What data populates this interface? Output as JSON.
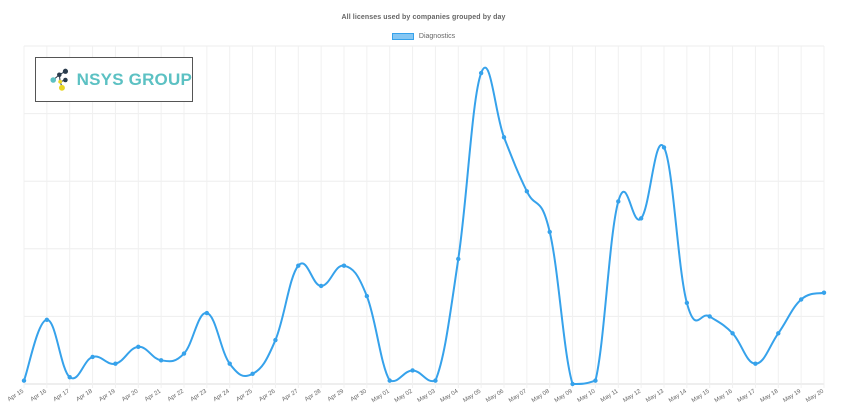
{
  "chart_data": {
    "type": "line",
    "title": "All licenses used by companies grouped by day",
    "categories": [
      "Apr 15",
      "Apr 16",
      "Apr 17",
      "Apr 18",
      "Apr 19",
      "Apr 20",
      "Apr 21",
      "Apr 22",
      "Apr 23",
      "Apr 24",
      "Apr 25",
      "Apr 26",
      "Apr 27",
      "Apr 28",
      "Apr 29",
      "Apr 30",
      "May 01",
      "May 02",
      "May 03",
      "May 04",
      "May 05",
      "May 06",
      "May 07",
      "May 08",
      "May 09",
      "May 10",
      "May 11",
      "May 12",
      "May 13",
      "May 14",
      "May 15",
      "May 16",
      "May 17",
      "May 18",
      "May 19",
      "May 20"
    ],
    "series": [
      {
        "name": "Diagnostics",
        "color": "#36a2eb",
        "values": [
          0.5,
          9.5,
          1,
          4,
          3,
          5.5,
          3.5,
          4.5,
          10.5,
          3,
          1.5,
          6.5,
          17.5,
          14.5,
          17.5,
          13,
          0.5,
          2,
          0.5,
          18.5,
          46,
          36.5,
          28.5,
          22.5,
          0,
          0.5,
          27,
          24.5,
          35,
          12,
          10,
          7.5,
          3,
          7.5,
          12.5,
          13.5
        ]
      }
    ],
    "ylim": [
      0,
      50
    ],
    "grid": true,
    "legend_position": "top"
  },
  "logo": {
    "text": "NSYS GROUP",
    "icon": "nsys-group-logo-mark"
  }
}
